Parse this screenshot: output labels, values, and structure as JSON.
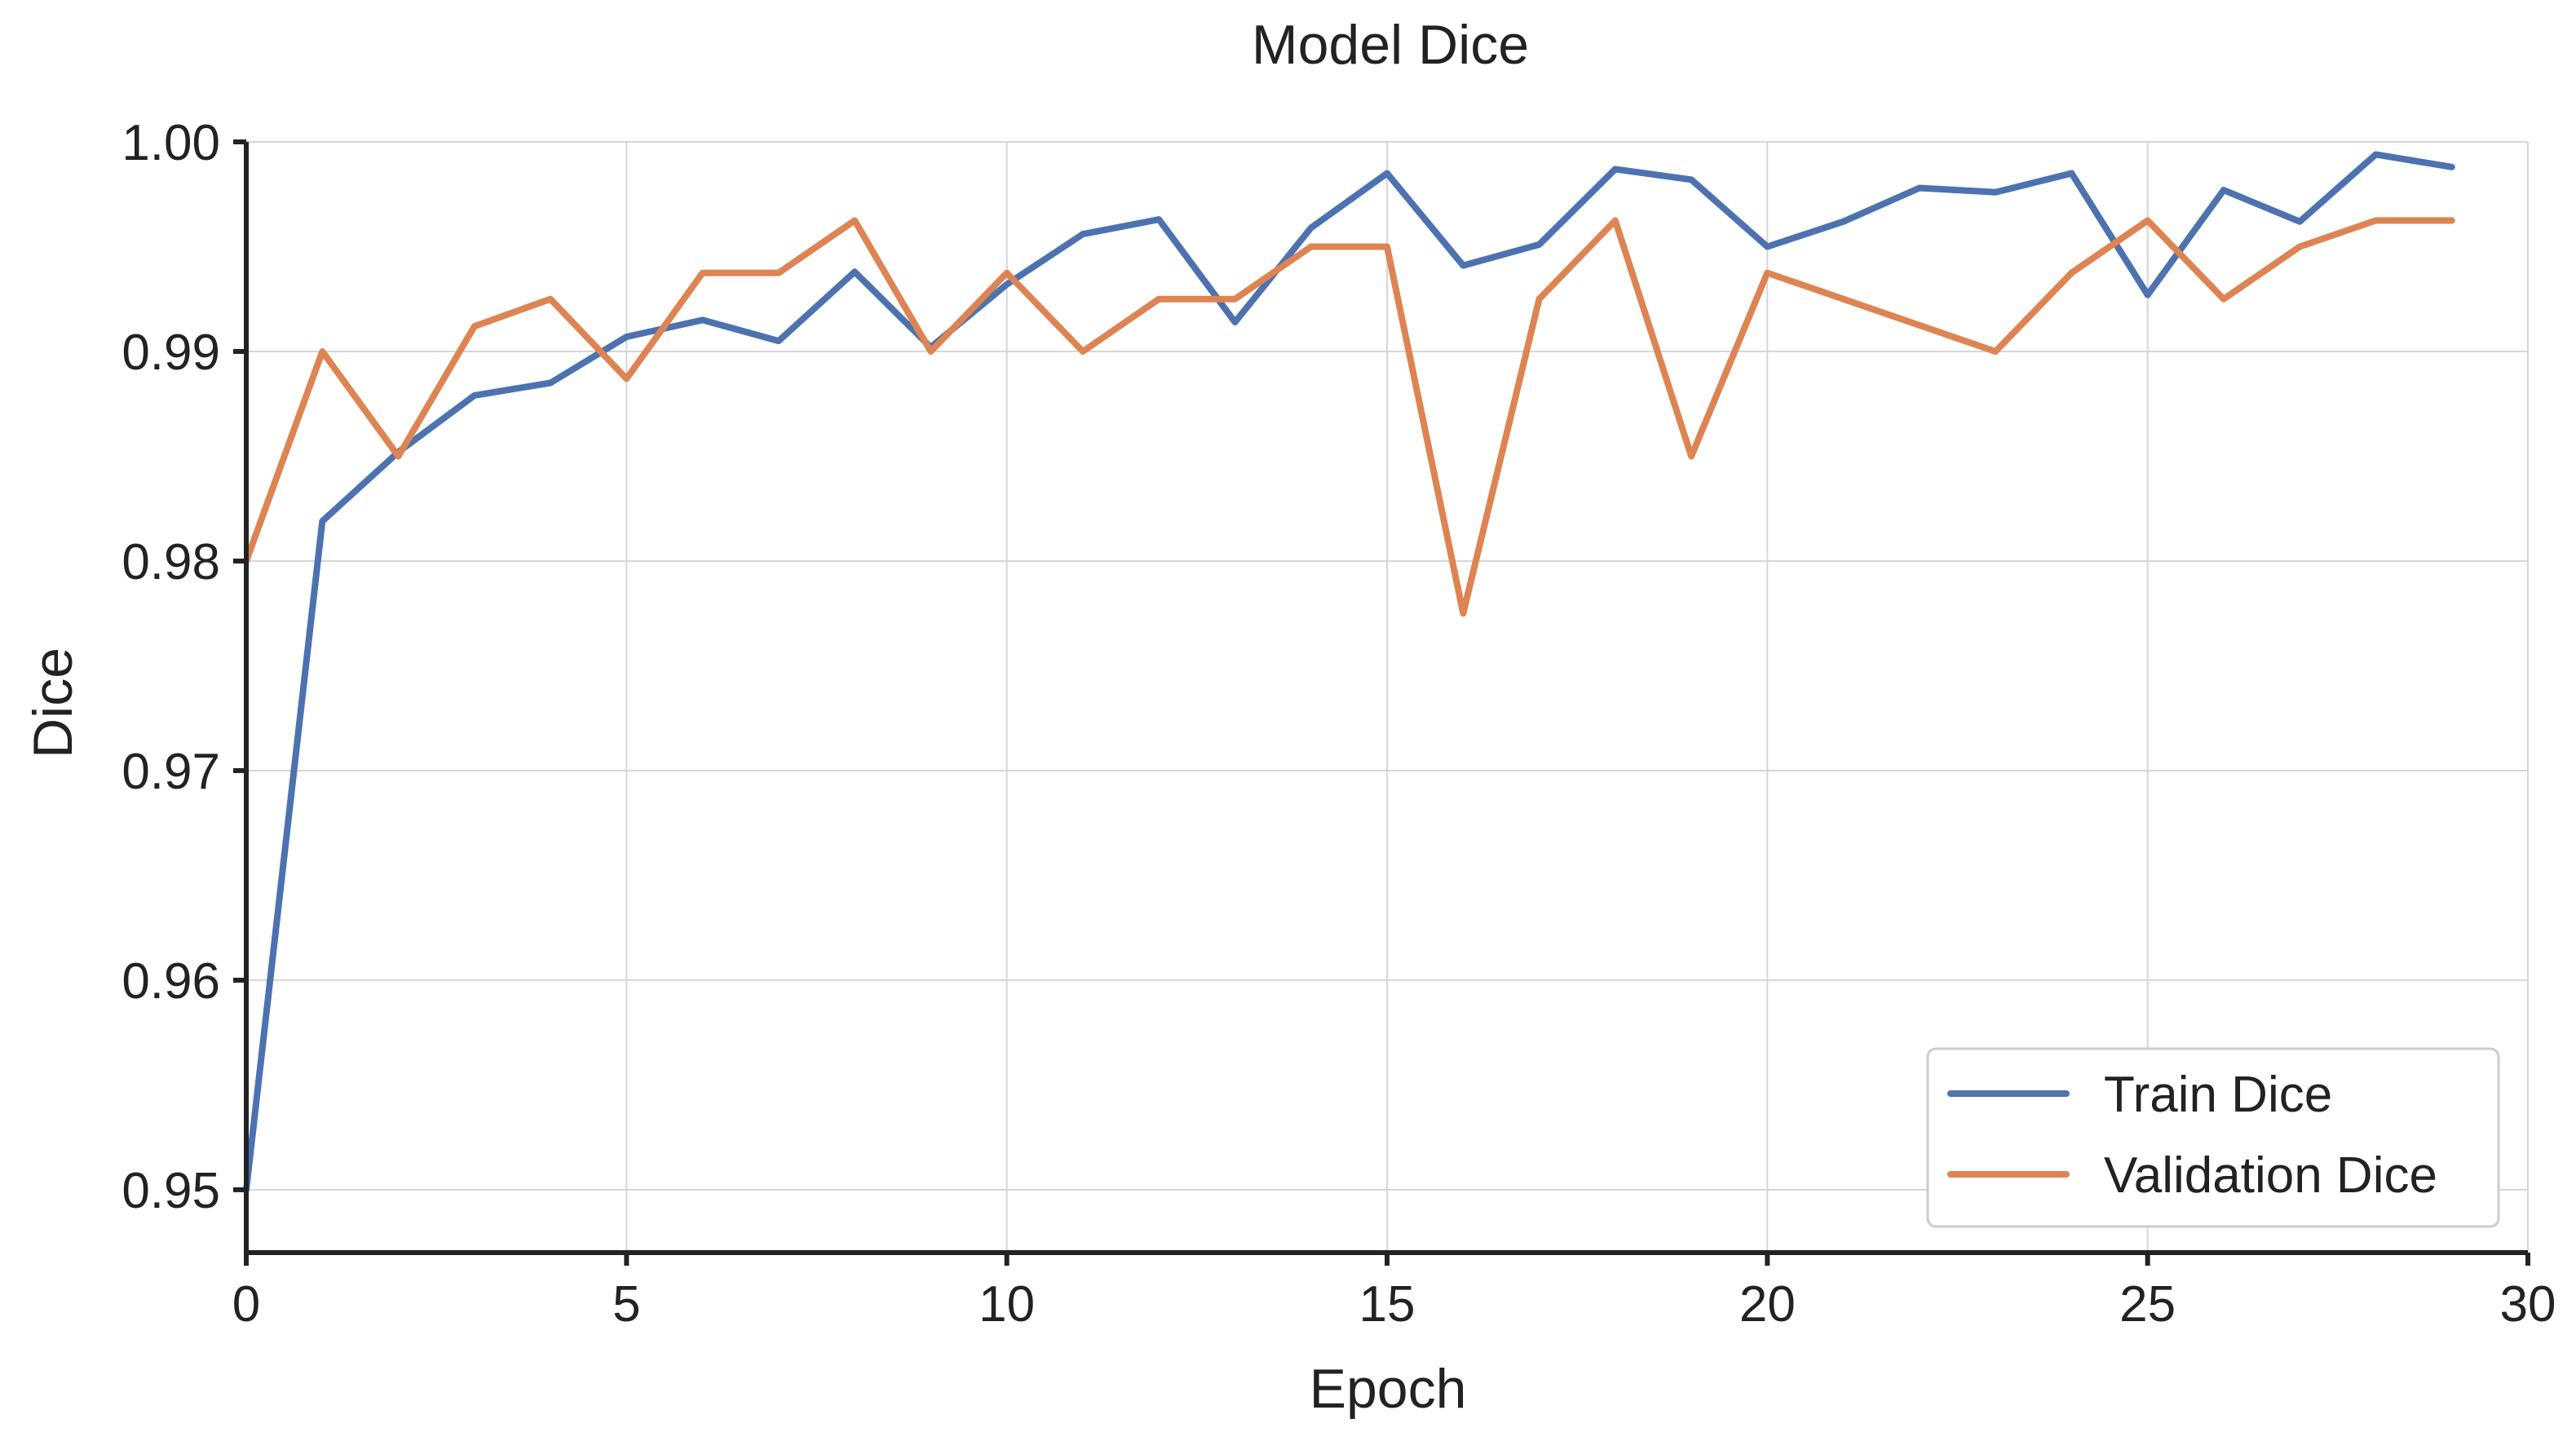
{
  "chart_data": {
    "type": "line",
    "title": "Model Dice",
    "xlabel": "Epoch",
    "ylabel": "Dice",
    "xlim": [
      0,
      30
    ],
    "ylim": [
      0.947,
      1.0
    ],
    "xticks": [
      0,
      5,
      10,
      15,
      20,
      25,
      30
    ],
    "xtick_labels": [
      "0",
      "5",
      "10",
      "15",
      "20",
      "25",
      "30"
    ],
    "yticks": [
      0.95,
      0.96,
      0.97,
      0.98,
      0.99,
      1.0
    ],
    "ytick_labels": [
      "0.95",
      "0.96",
      "0.97",
      "0.98",
      "0.99",
      "1.00"
    ],
    "grid": true,
    "legend_position": "lower-right",
    "x": [
      0,
      1,
      2,
      3,
      4,
      5,
      6,
      7,
      8,
      9,
      10,
      11,
      12,
      13,
      14,
      15,
      16,
      17,
      18,
      19,
      20,
      21,
      22,
      23,
      24,
      25,
      26,
      27,
      28,
      29
    ],
    "series": [
      {
        "name": "Train Dice",
        "color": "#4c72b0",
        "values": [
          0.95,
          0.9819,
          0.9852,
          0.9879,
          0.9885,
          0.9907,
          0.9915,
          0.9905,
          0.9938,
          0.9902,
          0.9932,
          0.9956,
          0.9963,
          0.9914,
          0.9959,
          0.9985,
          0.9941,
          0.9951,
          0.9987,
          0.9982,
          0.995,
          0.9962,
          0.9978,
          0.9976,
          0.9985,
          0.9927,
          0.9977,
          0.9962,
          0.9994,
          0.9988
        ]
      },
      {
        "name": "Validation Dice",
        "color": "#dd8452",
        "values": [
          0.98,
          0.99,
          0.985,
          0.9912,
          0.9925,
          0.9887,
          0.99375,
          0.99375,
          0.99625,
          0.99,
          0.99375,
          0.99,
          0.9925,
          0.9925,
          0.995,
          0.995,
          0.9775,
          0.9925,
          0.99625,
          0.985,
          0.99375,
          0.9925,
          0.99125,
          0.99,
          0.99375,
          0.99625,
          0.9925,
          0.995,
          0.99625,
          0.99625
        ]
      }
    ]
  }
}
